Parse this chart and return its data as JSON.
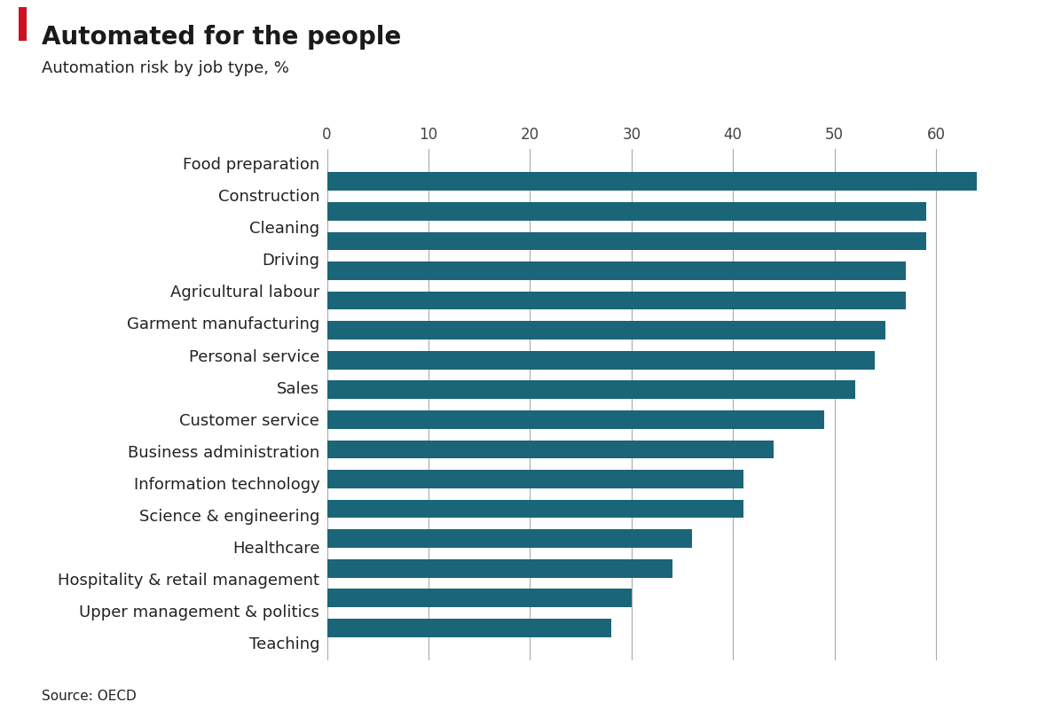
{
  "title": "Automated for the people",
  "subtitle": "Automation risk by job type, %",
  "source": "Source: OECD",
  "bar_color": "#1a6678",
  "background_color": "#ffffff",
  "categories": [
    "Food preparation",
    "Construction",
    "Cleaning",
    "Driving",
    "Agricultural labour",
    "Garment manufacturing",
    "Personal service",
    "Sales",
    "Customer service",
    "Business administration",
    "Information technology",
    "Science & engineering",
    "Healthcare",
    "Hospitality & retail management",
    "Upper management & politics",
    "Teaching"
  ],
  "values": [
    64,
    59,
    59,
    57,
    57,
    55,
    54,
    52,
    49,
    44,
    41,
    41,
    36,
    34,
    30,
    28
  ],
  "xlim": [
    0,
    68
  ],
  "xticks": [
    0,
    10,
    20,
    30,
    40,
    50,
    60
  ],
  "title_fontsize": 20,
  "subtitle_fontsize": 13,
  "label_fontsize": 13,
  "tick_fontsize": 12,
  "source_fontsize": 11,
  "title_color": "#1a1a1a",
  "label_color": "#222222",
  "tick_color": "#444444",
  "grid_color": "#aaaaaa",
  "accent_color": "#cc1122",
  "bar_height": 0.62
}
